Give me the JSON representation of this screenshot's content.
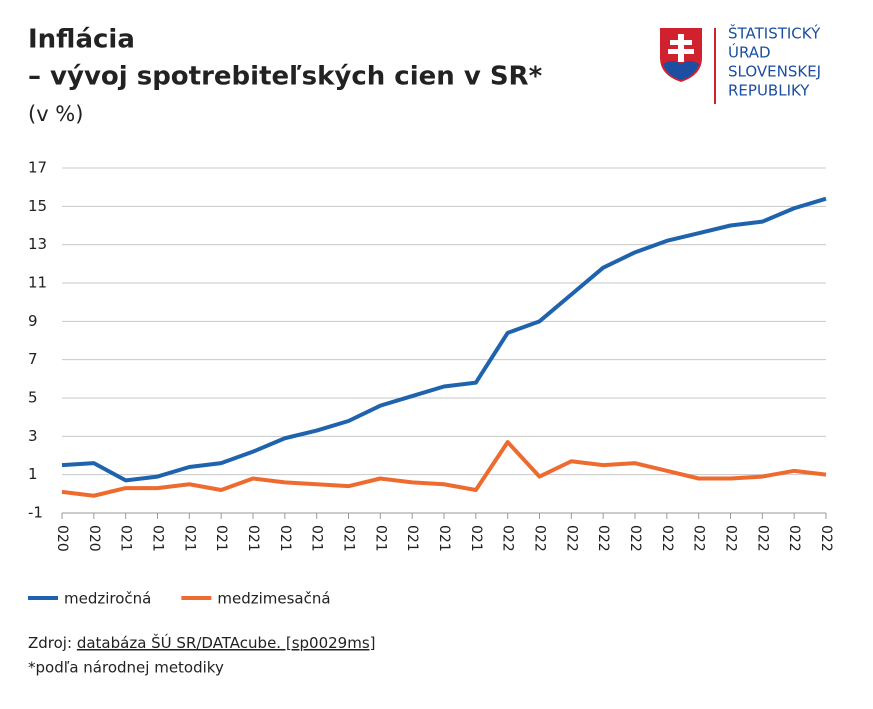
{
  "chart_data": {
    "type": "line",
    "title": [
      "Inflácia",
      "– vývoj spotrebiteľských cien v SR*"
    ],
    "subtitle": "(v %)",
    "categories": [
      "020",
      "020",
      "021",
      "021",
      "021",
      "021",
      "021",
      "021",
      "021",
      "021",
      "021",
      "021",
      "021",
      "021",
      "022",
      "022",
      "022",
      "022",
      "022",
      "022",
      "022",
      "022",
      "022",
      "022",
      "022"
    ],
    "series": [
      {
        "name": "medziročná",
        "color": "#1f63ad",
        "values": [
          1.5,
          1.6,
          0.7,
          0.9,
          1.4,
          1.6,
          2.2,
          2.9,
          3.3,
          3.8,
          4.6,
          5.1,
          5.6,
          5.8,
          8.4,
          9.0,
          10.4,
          11.8,
          12.6,
          13.2,
          13.6,
          14.0,
          14.2,
          14.9,
          15.4
        ]
      },
      {
        "name": "medzimesačná",
        "color": "#ee6b2f",
        "values": [
          0.1,
          -0.1,
          0.3,
          0.3,
          0.5,
          0.2,
          0.8,
          0.6,
          0.5,
          0.4,
          0.8,
          0.6,
          0.5,
          0.2,
          2.7,
          0.9,
          1.7,
          1.5,
          1.6,
          1.2,
          0.8,
          0.8,
          0.9,
          1.2,
          1.0
        ]
      }
    ],
    "ylim": [
      -1,
      17
    ],
    "yticks": [
      -1,
      1,
      3,
      5,
      7,
      9,
      11,
      13,
      15,
      17
    ],
    "grid": true,
    "legend": "bottom"
  },
  "logo": {
    "lines": [
      "ŠTATISTICKÝ",
      "ÚRAD",
      "SLOVENSKEJ",
      "REPUBLIKY"
    ]
  },
  "source": {
    "prefix": "Zdroj:",
    "link": "databáza ŠÚ SR/DATAcube. [sp0029ms]"
  },
  "footnote": "*podľa národnej metodiky"
}
